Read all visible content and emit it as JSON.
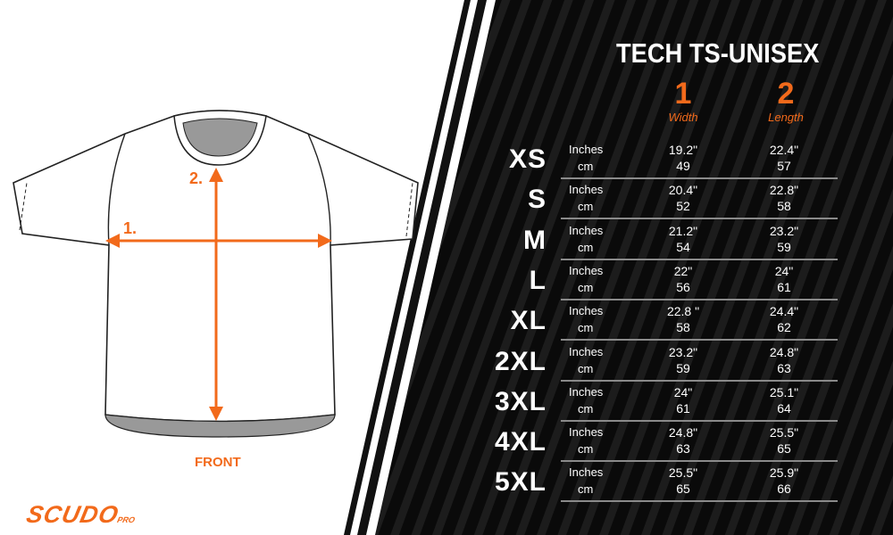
{
  "title": "TECH TS-UNISEX",
  "columns": [
    {
      "number": "1",
      "label": "Width"
    },
    {
      "number": "2",
      "label": "Length"
    }
  ],
  "units": {
    "inches": "Inches",
    "cm": "cm"
  },
  "rows": [
    {
      "size": "XS",
      "width_in": "19.2\"",
      "width_cm": "49",
      "length_in": "22.4\"",
      "length_cm": "57"
    },
    {
      "size": "S",
      "width_in": "20.4\"",
      "width_cm": "52",
      "length_in": "22.8\"",
      "length_cm": "58"
    },
    {
      "size": "M",
      "width_in": "21.2\"",
      "width_cm": "54",
      "length_in": "23.2\"",
      "length_cm": "59"
    },
    {
      "size": "L",
      "width_in": "22\"",
      "width_cm": "56",
      "length_in": "24\"",
      "length_cm": "61"
    },
    {
      "size": "XL",
      "width_in": "22.8 \"",
      "width_cm": "58",
      "length_in": "24.4\"",
      "length_cm": "62"
    },
    {
      "size": "2XL",
      "width_in": "23.2\"",
      "width_cm": "59",
      "length_in": "24.8\"",
      "length_cm": "63"
    },
    {
      "size": "3XL",
      "width_in": "24\"",
      "width_cm": "61",
      "length_in": "25.1\"",
      "length_cm": "64"
    },
    {
      "size": "4XL",
      "width_in": "24.8\"",
      "width_cm": "63",
      "length_in": "25.5\"",
      "length_cm": "65"
    },
    {
      "size": "5XL",
      "width_in": "25.5\"",
      "width_cm": "65",
      "length_in": "25.9\"",
      "length_cm": "66"
    }
  ],
  "diagram": {
    "label_width": "1.",
    "label_length": "2.",
    "view": "FRONT"
  },
  "brand": {
    "name": "SCUDO",
    "suffix": "PRO"
  },
  "colors": {
    "accent": "#f26a1b",
    "panel": "#0a0a0a"
  }
}
